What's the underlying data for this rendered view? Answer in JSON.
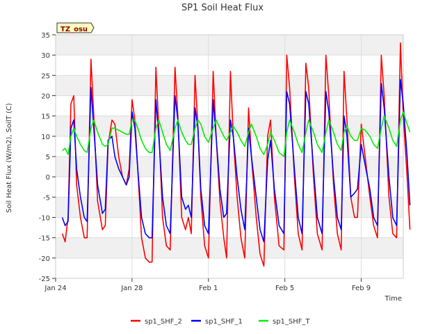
{
  "chart_data": {
    "type": "line",
    "title": "SP1 Soil Heat Flux",
    "xlabel": "Time",
    "ylabel": "Soil Heat Flux (W/m2), SoilT (C)",
    "site_badge": "TZ_osu",
    "ylim": [
      -25,
      35
    ],
    "xlim": [
      0,
      18.2
    ],
    "y_ticks": [
      -25,
      -20,
      -15,
      -10,
      -5,
      0,
      5,
      10,
      15,
      20,
      25,
      30,
      35
    ],
    "x_ticks": [
      {
        "x": 0,
        "label": "Jan 24"
      },
      {
        "x": 4,
        "label": "Jan 28"
      },
      {
        "x": 8,
        "label": "Feb 1"
      },
      {
        "x": 12,
        "label": "Feb 5"
      },
      {
        "x": 16,
        "label": "Feb 9"
      }
    ],
    "grid": true,
    "legend_position": "bottom",
    "series": [
      {
        "name": "sp1_SHF_2",
        "color": "#ff0000",
        "points": [
          [
            0.35,
            -14
          ],
          [
            0.5,
            -16
          ],
          [
            0.65,
            -10
          ],
          [
            0.8,
            18
          ],
          [
            0.95,
            20
          ],
          [
            1.1,
            -2
          ],
          [
            1.3,
            -10
          ],
          [
            1.5,
            -15
          ],
          [
            1.65,
            -15
          ],
          [
            1.85,
            29
          ],
          [
            2.0,
            15
          ],
          [
            2.2,
            -6
          ],
          [
            2.45,
            -13
          ],
          [
            2.6,
            -12
          ],
          [
            2.75,
            8
          ],
          [
            2.95,
            14
          ],
          [
            3.1,
            13
          ],
          [
            3.3,
            5
          ],
          [
            3.5,
            0
          ],
          [
            3.7,
            -2
          ],
          [
            3.85,
            2
          ],
          [
            4.0,
            19
          ],
          [
            4.15,
            14
          ],
          [
            4.3,
            2
          ],
          [
            4.5,
            -15
          ],
          [
            4.7,
            -20
          ],
          [
            4.9,
            -21
          ],
          [
            5.05,
            -21
          ],
          [
            5.25,
            27
          ],
          [
            5.4,
            12
          ],
          [
            5.6,
            -10
          ],
          [
            5.8,
            -17
          ],
          [
            6.0,
            -18
          ],
          [
            6.25,
            27
          ],
          [
            6.4,
            15
          ],
          [
            6.6,
            -10
          ],
          [
            6.8,
            -13
          ],
          [
            6.95,
            -10
          ],
          [
            7.1,
            -14
          ],
          [
            7.3,
            25
          ],
          [
            7.45,
            12
          ],
          [
            7.6,
            -5
          ],
          [
            7.8,
            -17
          ],
          [
            8.0,
            -20
          ],
          [
            8.25,
            26
          ],
          [
            8.4,
            10
          ],
          [
            8.6,
            -6
          ],
          [
            8.8,
            -15
          ],
          [
            8.95,
            -20
          ],
          [
            9.15,
            26
          ],
          [
            9.3,
            10
          ],
          [
            9.5,
            -5
          ],
          [
            9.7,
            -15
          ],
          [
            9.9,
            -20
          ],
          [
            10.1,
            17
          ],
          [
            10.25,
            5
          ],
          [
            10.5,
            -10
          ],
          [
            10.7,
            -19
          ],
          [
            10.9,
            -22
          ],
          [
            11.1,
            10
          ],
          [
            11.25,
            14
          ],
          [
            11.45,
            -5
          ],
          [
            11.7,
            -17
          ],
          [
            11.95,
            -18
          ],
          [
            12.1,
            30
          ],
          [
            12.25,
            22
          ],
          [
            12.5,
            0
          ],
          [
            12.7,
            -14
          ],
          [
            12.9,
            -18
          ],
          [
            13.1,
            28
          ],
          [
            13.25,
            22
          ],
          [
            13.5,
            0
          ],
          [
            13.7,
            -14
          ],
          [
            13.95,
            -18
          ],
          [
            14.15,
            30
          ],
          [
            14.3,
            20
          ],
          [
            14.55,
            -2
          ],
          [
            14.75,
            -14
          ],
          [
            14.95,
            -18
          ],
          [
            15.1,
            26
          ],
          [
            15.25,
            14
          ],
          [
            15.45,
            -5
          ],
          [
            15.65,
            -10
          ],
          [
            15.8,
            -10
          ],
          [
            16.0,
            13
          ],
          [
            16.2,
            5
          ],
          [
            16.45,
            -5
          ],
          [
            16.65,
            -12
          ],
          [
            16.85,
            -15
          ],
          [
            17.05,
            30
          ],
          [
            17.2,
            20
          ],
          [
            17.45,
            -5
          ],
          [
            17.65,
            -14
          ],
          [
            17.85,
            -15
          ],
          [
            18.05,
            33
          ],
          [
            18.2,
            15
          ],
          [
            18.4,
            0
          ],
          [
            18.55,
            -13
          ]
        ]
      },
      {
        "name": "sp1_SHF_1",
        "color": "#0000ff",
        "points": [
          [
            0.35,
            -10
          ],
          [
            0.5,
            -12
          ],
          [
            0.65,
            -11
          ],
          [
            0.8,
            12
          ],
          [
            0.95,
            14
          ],
          [
            1.1,
            2
          ],
          [
            1.3,
            -5
          ],
          [
            1.5,
            -10
          ],
          [
            1.65,
            -11
          ],
          [
            1.85,
            22
          ],
          [
            2.0,
            12
          ],
          [
            2.2,
            -2
          ],
          [
            2.45,
            -9
          ],
          [
            2.6,
            -8
          ],
          [
            2.75,
            9
          ],
          [
            2.95,
            10
          ],
          [
            3.1,
            5
          ],
          [
            3.3,
            2
          ],
          [
            3.5,
            0
          ],
          [
            3.7,
            -2
          ],
          [
            3.85,
            0
          ],
          [
            4.0,
            16
          ],
          [
            4.15,
            12
          ],
          [
            4.3,
            2
          ],
          [
            4.5,
            -10
          ],
          [
            4.7,
            -14
          ],
          [
            4.9,
            -15
          ],
          [
            5.05,
            -15
          ],
          [
            5.25,
            19
          ],
          [
            5.4,
            10
          ],
          [
            5.6,
            -5
          ],
          [
            5.8,
            -12
          ],
          [
            6.0,
            -14
          ],
          [
            6.25,
            20
          ],
          [
            6.4,
            14
          ],
          [
            6.6,
            -5
          ],
          [
            6.8,
            -8
          ],
          [
            6.95,
            -7
          ],
          [
            7.1,
            -10
          ],
          [
            7.3,
            17
          ],
          [
            7.45,
            12
          ],
          [
            7.6,
            -3
          ],
          [
            7.8,
            -12
          ],
          [
            8.0,
            -14
          ],
          [
            8.25,
            19
          ],
          [
            8.4,
            10
          ],
          [
            8.6,
            -3
          ],
          [
            8.8,
            -10
          ],
          [
            8.95,
            -9
          ],
          [
            9.15,
            14
          ],
          [
            9.3,
            10
          ],
          [
            9.5,
            0
          ],
          [
            9.7,
            -8
          ],
          [
            9.9,
            -13
          ],
          [
            10.1,
            12
          ],
          [
            10.25,
            5
          ],
          [
            10.5,
            -5
          ],
          [
            10.7,
            -13
          ],
          [
            10.9,
            -16
          ],
          [
            11.1,
            4
          ],
          [
            11.25,
            9
          ],
          [
            11.45,
            -3
          ],
          [
            11.7,
            -12
          ],
          [
            11.95,
            -14
          ],
          [
            12.1,
            21
          ],
          [
            12.25,
            18
          ],
          [
            12.5,
            2
          ],
          [
            12.7,
            -10
          ],
          [
            12.9,
            -14
          ],
          [
            13.1,
            21
          ],
          [
            13.25,
            18
          ],
          [
            13.5,
            2
          ],
          [
            13.7,
            -10
          ],
          [
            13.95,
            -14
          ],
          [
            14.15,
            21
          ],
          [
            14.3,
            16
          ],
          [
            14.55,
            0
          ],
          [
            14.75,
            -10
          ],
          [
            14.95,
            -13
          ],
          [
            15.1,
            15
          ],
          [
            15.25,
            10
          ],
          [
            15.45,
            -5
          ],
          [
            15.65,
            -4
          ],
          [
            15.8,
            -3
          ],
          [
            16.0,
            8
          ],
          [
            16.2,
            3
          ],
          [
            16.45,
            -3
          ],
          [
            16.65,
            -10
          ],
          [
            16.85,
            -12
          ],
          [
            17.05,
            23
          ],
          [
            17.2,
            17
          ],
          [
            17.45,
            0
          ],
          [
            17.65,
            -10
          ],
          [
            17.85,
            -12
          ],
          [
            18.05,
            24
          ],
          [
            18.2,
            18
          ],
          [
            18.4,
            5
          ],
          [
            18.55,
            -7
          ]
        ]
      },
      {
        "name": "sp1_SHF_T",
        "color": "#00ee00",
        "points": [
          [
            0.35,
            6.5
          ],
          [
            0.5,
            7
          ],
          [
            0.65,
            5.5
          ],
          [
            0.8,
            10
          ],
          [
            0.95,
            12
          ],
          [
            1.1,
            10
          ],
          [
            1.3,
            8
          ],
          [
            1.5,
            6.5
          ],
          [
            1.65,
            6
          ],
          [
            1.85,
            12
          ],
          [
            2.0,
            14
          ],
          [
            2.2,
            11
          ],
          [
            2.45,
            8
          ],
          [
            2.6,
            7.5
          ],
          [
            2.75,
            8
          ],
          [
            2.95,
            12
          ],
          [
            3.1,
            12
          ],
          [
            3.3,
            11.5
          ],
          [
            3.5,
            11
          ],
          [
            3.7,
            10.5
          ],
          [
            3.85,
            10.5
          ],
          [
            4.0,
            14
          ],
          [
            4.15,
            14
          ],
          [
            4.3,
            12
          ],
          [
            4.5,
            9
          ],
          [
            4.7,
            7
          ],
          [
            4.9,
            6
          ],
          [
            5.05,
            6
          ],
          [
            5.25,
            12
          ],
          [
            5.4,
            14
          ],
          [
            5.6,
            11
          ],
          [
            5.8,
            8
          ],
          [
            6.0,
            6.5
          ],
          [
            6.25,
            12
          ],
          [
            6.4,
            14
          ],
          [
            6.6,
            11
          ],
          [
            6.8,
            9
          ],
          [
            6.95,
            8
          ],
          [
            7.1,
            8
          ],
          [
            7.3,
            12
          ],
          [
            7.45,
            14
          ],
          [
            7.6,
            13
          ],
          [
            7.8,
            10
          ],
          [
            8.0,
            8.5
          ],
          [
            8.25,
            12
          ],
          [
            8.4,
            14
          ],
          [
            8.6,
            12
          ],
          [
            8.8,
            10
          ],
          [
            8.95,
            9
          ],
          [
            9.15,
            11
          ],
          [
            9.3,
            12.5
          ],
          [
            9.5,
            11
          ],
          [
            9.7,
            9
          ],
          [
            9.9,
            7.5
          ],
          [
            10.1,
            11
          ],
          [
            10.25,
            13
          ],
          [
            10.5,
            10
          ],
          [
            10.7,
            7
          ],
          [
            10.9,
            5.5
          ],
          [
            11.1,
            8
          ],
          [
            11.25,
            11
          ],
          [
            11.45,
            9
          ],
          [
            11.7,
            6
          ],
          [
            11.95,
            5
          ],
          [
            12.1,
            11
          ],
          [
            12.25,
            14
          ],
          [
            12.5,
            11
          ],
          [
            12.7,
            8
          ],
          [
            12.9,
            6
          ],
          [
            13.1,
            11
          ],
          [
            13.25,
            14
          ],
          [
            13.5,
            11
          ],
          [
            13.7,
            8
          ],
          [
            13.95,
            6
          ],
          [
            14.15,
            11
          ],
          [
            14.3,
            14
          ],
          [
            14.55,
            11
          ],
          [
            14.75,
            8
          ],
          [
            14.95,
            6.5
          ],
          [
            15.1,
            11
          ],
          [
            15.25,
            12.5
          ],
          [
            15.45,
            10
          ],
          [
            15.65,
            9
          ],
          [
            15.8,
            9
          ],
          [
            16.0,
            12
          ],
          [
            16.2,
            11.5
          ],
          [
            16.45,
            10
          ],
          [
            16.65,
            8
          ],
          [
            16.85,
            7
          ],
          [
            17.05,
            12
          ],
          [
            17.2,
            15
          ],
          [
            17.45,
            12
          ],
          [
            17.65,
            9
          ],
          [
            17.85,
            7.5
          ],
          [
            18.05,
            14
          ],
          [
            18.2,
            16
          ],
          [
            18.4,
            13
          ],
          [
            18.55,
            11
          ]
        ]
      }
    ]
  }
}
